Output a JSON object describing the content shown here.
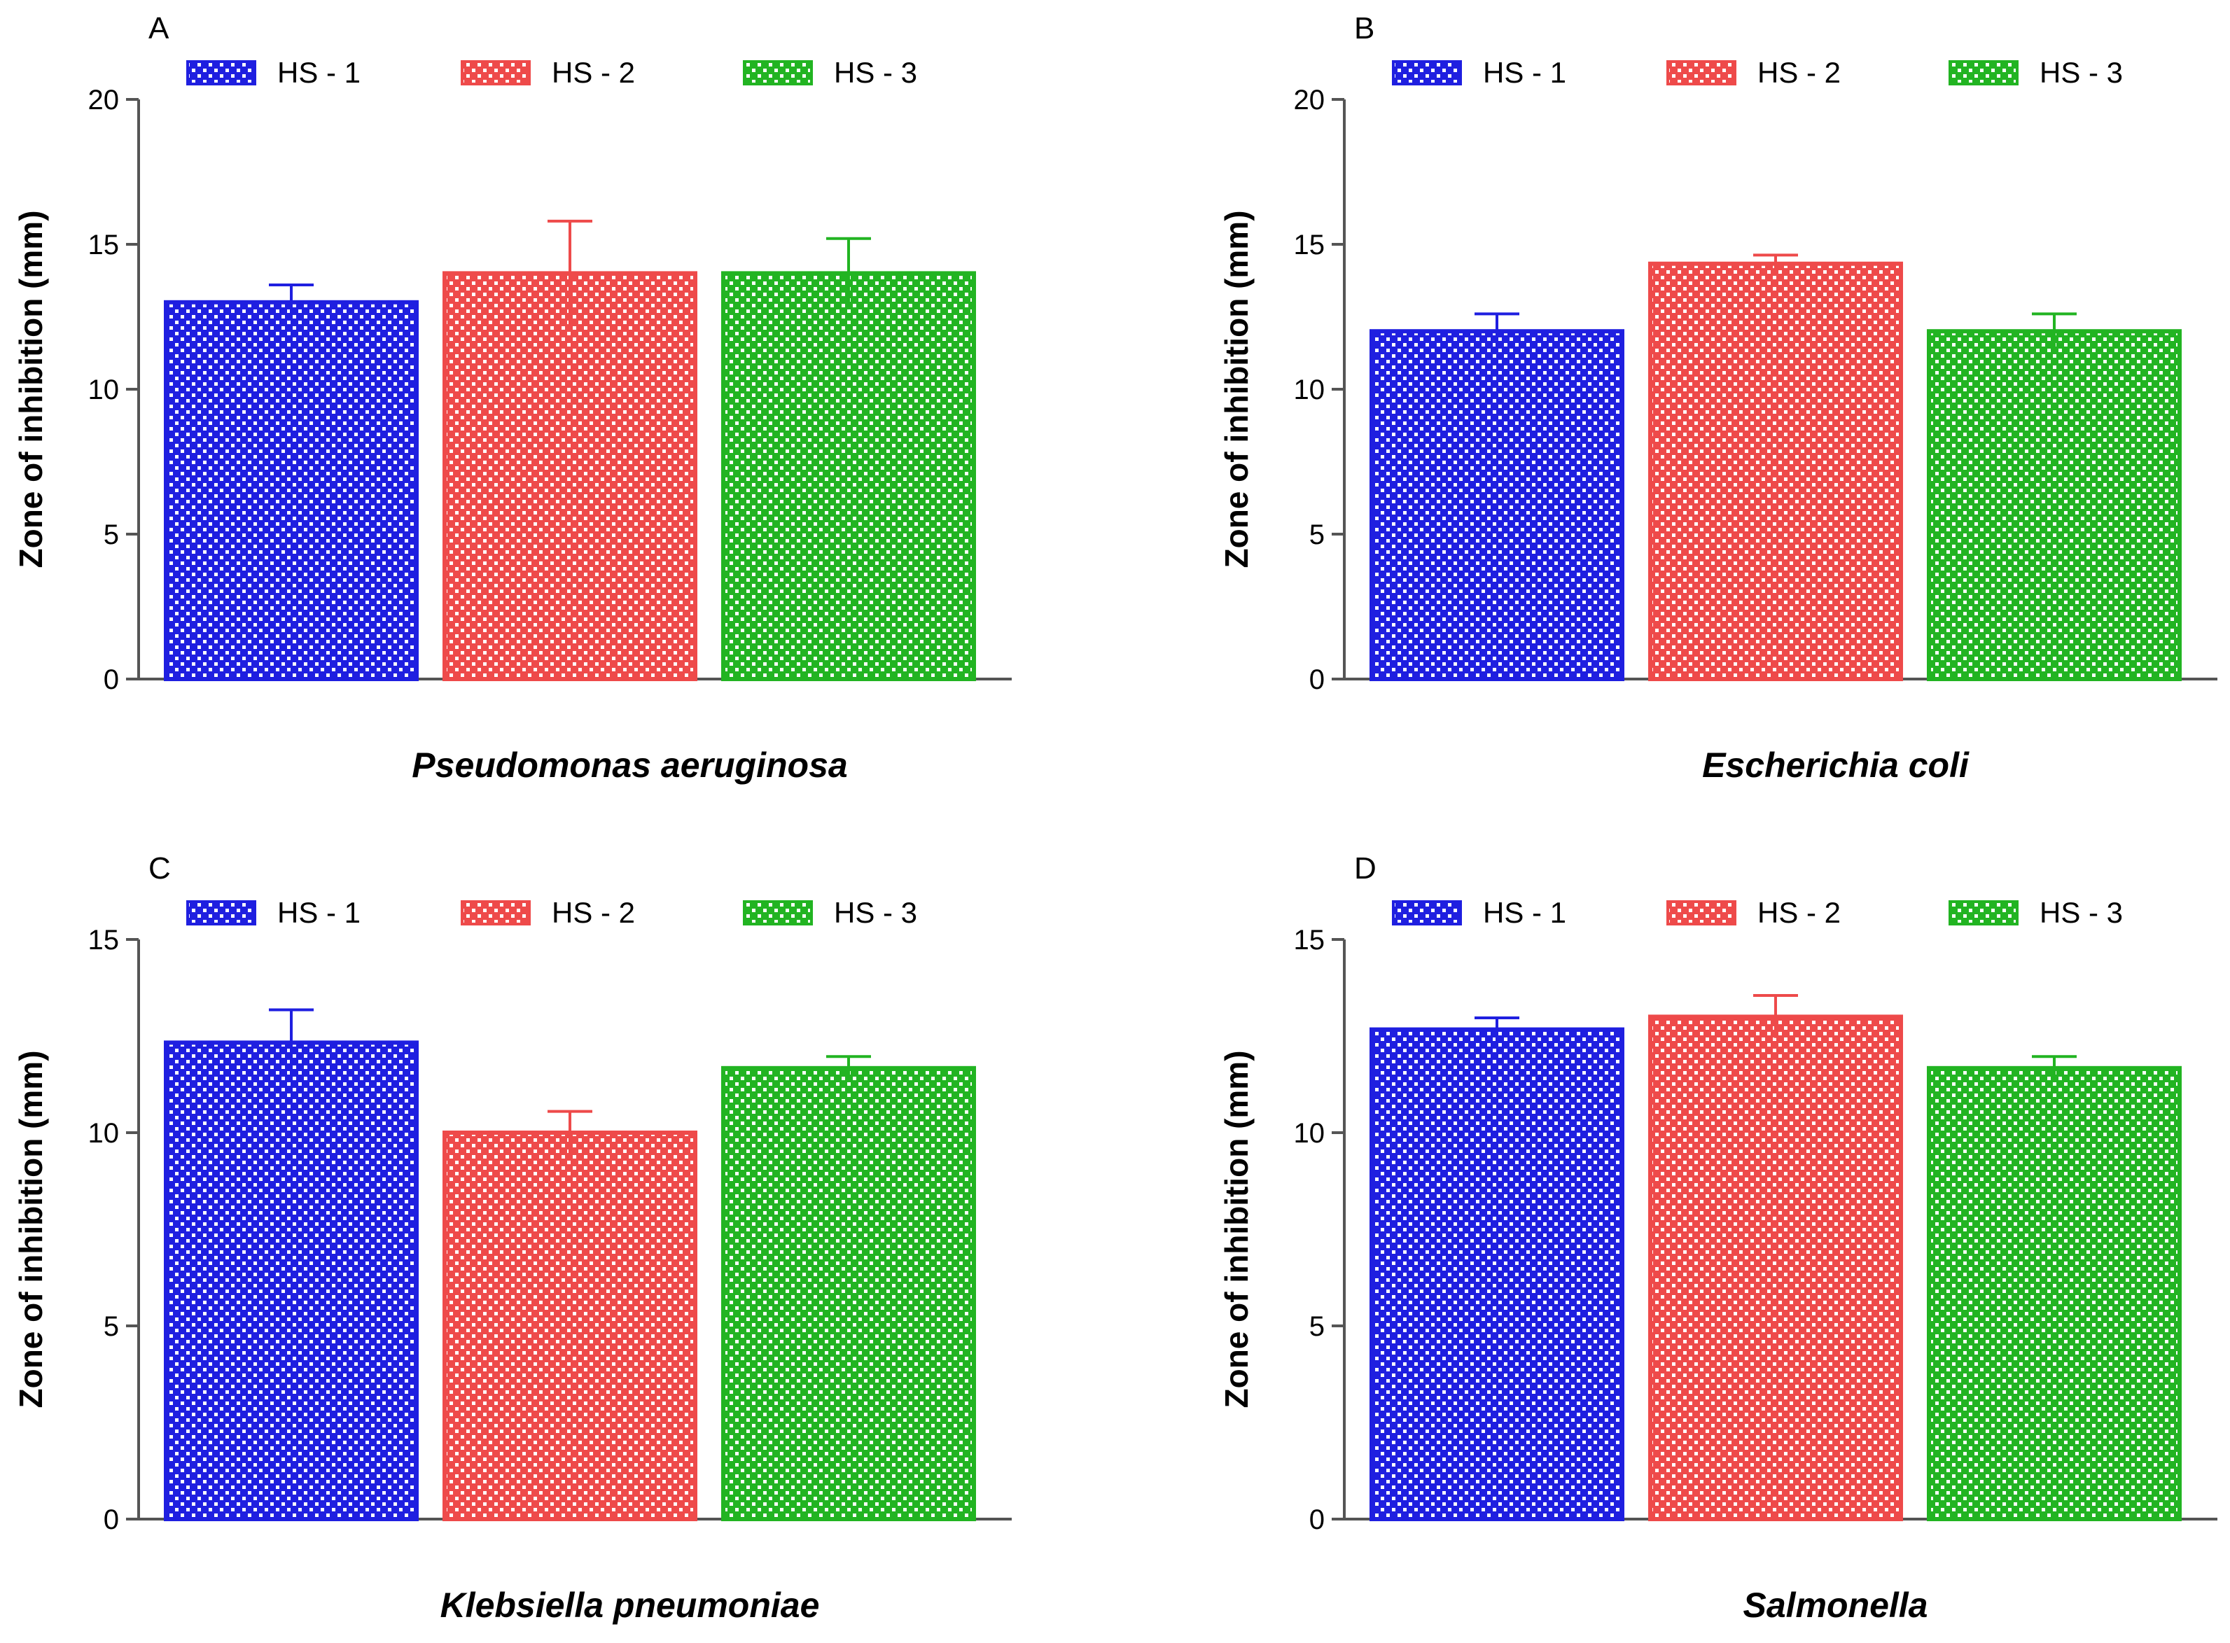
{
  "chart_data": [
    {
      "panel": "A",
      "type": "bar",
      "categories": [
        "HS - 1",
        "HS - 2",
        "HS - 3"
      ],
      "values": [
        13,
        14,
        14
      ],
      "errors": [
        0.6,
        1.8,
        1.2
      ],
      "ylabel": "Zone of inhibition (mm)",
      "xlabel": "Pseudomonas aeruginosa",
      "ylim": [
        0,
        20
      ],
      "yticks": [
        0,
        5,
        10,
        15,
        20
      ],
      "legend": [
        "HS - 1",
        "HS - 2",
        "HS - 3"
      ]
    },
    {
      "panel": "B",
      "type": "bar",
      "categories": [
        "HS - 1",
        "HS - 2",
        "HS - 3"
      ],
      "values": [
        12,
        14.33,
        12
      ],
      "errors": [
        0.6,
        0.3,
        0.6
      ],
      "ylabel": "Zone of inhibition (mm)",
      "xlabel": "Escherichia coli",
      "ylim": [
        0,
        20
      ],
      "yticks": [
        0,
        5,
        10,
        15,
        20
      ],
      "legend": [
        "HS - 1",
        "HS - 2",
        "HS - 3"
      ]
    },
    {
      "panel": "C",
      "type": "bar",
      "categories": [
        "HS - 1",
        "HS - 2",
        "HS - 3"
      ],
      "values": [
        12.33,
        10,
        11.67
      ],
      "errors": [
        0.85,
        0.55,
        0.3
      ],
      "ylabel": "Zone of inhibition (mm)",
      "xlabel": "Klebsiella pneumoniae",
      "ylim": [
        0,
        15
      ],
      "yticks": [
        0,
        5,
        10,
        15
      ],
      "legend": [
        "HS - 1",
        "HS - 2",
        "HS - 3"
      ]
    },
    {
      "panel": "D",
      "type": "bar",
      "categories": [
        "HS - 1",
        "HS - 2",
        "HS - 3"
      ],
      "values": [
        12.67,
        13,
        11.67
      ],
      "errors": [
        0.3,
        0.55,
        0.3
      ],
      "ylabel": "Zone of inhibition (mm)",
      "xlabel": "Salmonella",
      "ylim": [
        0,
        15
      ],
      "yticks": [
        0,
        5,
        10,
        15
      ],
      "legend": [
        "HS - 1",
        "HS - 2",
        "HS - 3"
      ]
    }
  ],
  "colors": {
    "HS - 1": "#1f1fe0",
    "HS - 2": "#ee4a4a",
    "HS - 3": "#22b422"
  }
}
